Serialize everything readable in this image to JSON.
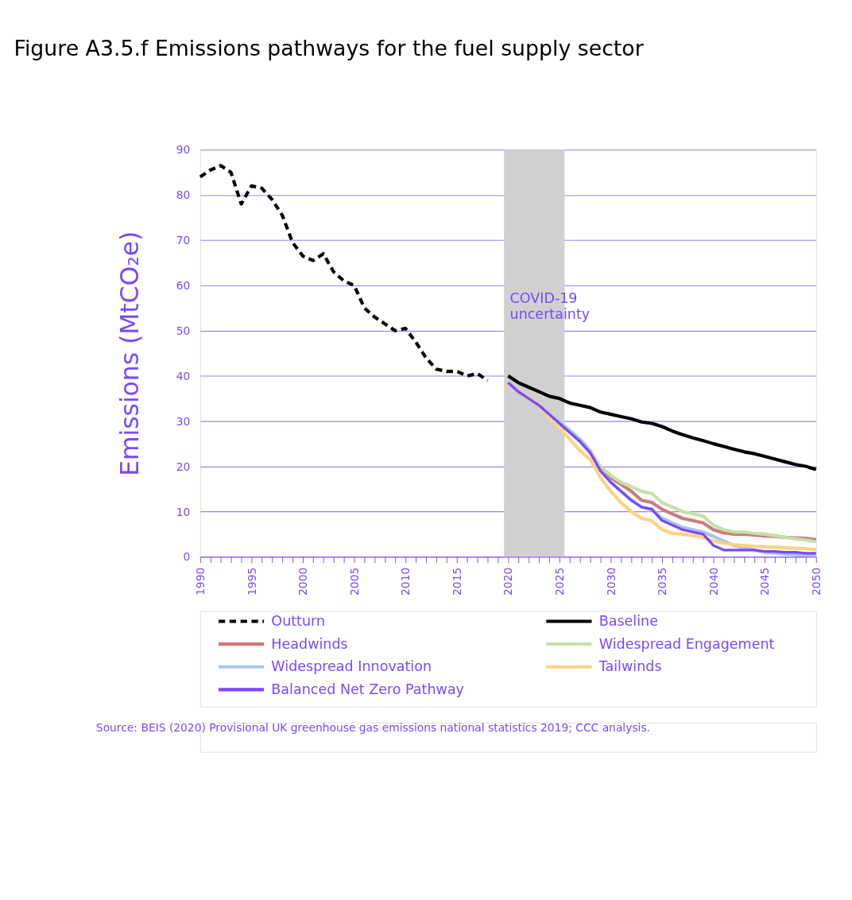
{
  "chart_data": {
    "type": "line",
    "title": "Figure A3.5.f Emissions pathways for the fuel supply sector",
    "ylabel": "Emissions (MtCO₂e)",
    "annotations": [
      "Source: BEIS (2020) Provisional UK greenhouse gas emissions national statistics 2019; CCC analysis."
    ],
    "xlim": [
      1990,
      2050
    ],
    "xticks": [
      1990,
      {
        "value": 1991,
        "label": null
      },
      {
        "value": 1992,
        "label": null
      },
      {
        "value": 1993,
        "label": null
      },
      {
        "value": 1994,
        "label": null
      },
      1995,
      {
        "value": 1996,
        "label": null
      },
      {
        "value": 1997,
        "label": null
      },
      {
        "value": 1998,
        "label": null
      },
      {
        "value": 1999,
        "label": null
      },
      2000,
      {
        "value": 2001,
        "label": null
      },
      {
        "value": 2002,
        "label": null
      },
      {
        "value": 2003,
        "label": null
      },
      {
        "value": 2004,
        "label": null
      },
      2005,
      {
        "value": 2006,
        "label": null
      },
      {
        "value": 2007,
        "label": null
      },
      {
        "value": 2008,
        "label": null
      },
      {
        "value": 2009,
        "label": null
      },
      2010,
      {
        "value": 2011,
        "label": null
      },
      {
        "value": 2012,
        "label": null
      },
      {
        "value": 2013,
        "label": null
      },
      {
        "value": 2014,
        "label": null
      },
      2015,
      {
        "value": 2016,
        "label": null
      },
      {
        "value": 2017,
        "label": null
      },
      {
        "value": 2018,
        "label": null
      },
      {
        "value": 2019,
        "label": null
      },
      2020,
      {
        "value": 2021,
        "label": null
      },
      {
        "value": 2022,
        "label": null
      },
      {
        "value": 2023,
        "label": null
      },
      {
        "value": 2024,
        "label": null
      },
      2025,
      {
        "value": 2026,
        "label": null
      },
      {
        "value": 2027,
        "label": null
      },
      {
        "value": 2028,
        "label": null
      },
      {
        "value": 2029,
        "label": null
      },
      2030,
      {
        "value": 2031,
        "label": null
      },
      {
        "value": 2032,
        "label": null
      },
      {
        "value": 2033,
        "label": null
      },
      {
        "value": 2034,
        "label": null
      },
      2035,
      {
        "value": 2036,
        "label": null
      },
      {
        "value": 2037,
        "label": null
      },
      {
        "value": 2038,
        "label": null
      },
      {
        "value": 2039,
        "label": null
      },
      2040,
      {
        "value": 2041,
        "label": null
      },
      {
        "value": 2042,
        "label": null
      },
      {
        "value": 2043,
        "label": null
      },
      {
        "value": 2044,
        "label": null
      },
      2045,
      {
        "value": 2046,
        "label": null
      },
      {
        "value": 2047,
        "label": null
      },
      {
        "value": 2048,
        "label": null
      },
      {
        "value": 2049,
        "label": null
      },
      2050
    ],
    "ylim": [
      0,
      90
    ],
    "yticks": [
      0,
      10,
      20,
      30,
      40,
      50,
      60,
      70,
      80,
      90
    ],
    "grid": "y",
    "legend": "bottom",
    "bands": [
      {
        "axis": "x",
        "from": 2019.6,
        "to": 2025.5,
        "label": "COVID-19\nuncertainty",
        "color": "#d0d0d0"
      }
    ],
    "series": [
      {
        "name": "Outturn",
        "color": "#000000",
        "line_style": "dashed",
        "x": [
          1990,
          1991,
          1992,
          1993,
          1994,
          1995,
          1996,
          1997,
          1998,
          1999,
          2000,
          2001,
          2002,
          2003,
          2004,
          2005,
          2006,
          2007,
          2008,
          2009,
          2010,
          2011,
          2012,
          2013,
          2014,
          2015,
          2016,
          2017,
          2018
        ],
        "values": [
          84,
          85.5,
          86.5,
          85,
          78,
          82,
          81.5,
          79,
          75.5,
          69.5,
          66.5,
          65.5,
          67,
          63,
          61,
          60,
          55,
          53,
          51.5,
          50,
          50.5,
          47.5,
          44,
          41.5,
          41,
          41,
          40,
          40.5,
          39
        ]
      },
      {
        "name": "Baseline",
        "color": "#000000",
        "line_style": "solid",
        "x": [
          2020,
          2021,
          2022,
          2023,
          2024,
          2025,
          2026,
          2027,
          2028,
          2029,
          2030,
          2031,
          2032,
          2033,
          2034,
          2035,
          2036,
          2037,
          2038,
          2039,
          2040,
          2041,
          2042,
          2043,
          2044,
          2045,
          2046,
          2047,
          2048,
          2049,
          2050
        ],
        "values": [
          40,
          38.5,
          37.5,
          36.5,
          35.5,
          35,
          34,
          33.5,
          33,
          32,
          31.5,
          31,
          30.5,
          29.8,
          29.5,
          28.8,
          27.8,
          27,
          26.3,
          25.7,
          25,
          24.4,
          23.8,
          23.2,
          22.8,
          22.2,
          21.6,
          21,
          20.4,
          20,
          19.3
        ]
      },
      {
        "name": "Headwinds",
        "color": "#c97b7d",
        "line_style": "solid",
        "x": [
          2020,
          2021,
          2022,
          2023,
          2024,
          2025,
          2026,
          2027,
          2028,
          2029,
          2030,
          2031,
          2032,
          2033,
          2034,
          2035,
          2036,
          2037,
          2038,
          2039,
          2040,
          2041,
          2042,
          2043,
          2044,
          2045,
          2046,
          2047,
          2048,
          2049,
          2050
        ],
        "values": [
          38.5,
          36.5,
          35,
          33.5,
          31.5,
          29.5,
          27.5,
          25.5,
          23,
          19.5,
          17.5,
          16,
          14.5,
          12.5,
          12,
          10.5,
          9.5,
          8.5,
          8,
          7.5,
          6,
          5.3,
          5,
          5,
          4.8,
          4.6,
          4.5,
          4.3,
          4.2,
          4.1,
          3.8
        ]
      },
      {
        "name": "Widespread Engagement",
        "color": "#c5e0a5",
        "line_style": "solid",
        "x": [
          2020,
          2021,
          2022,
          2023,
          2024,
          2025,
          2026,
          2027,
          2028,
          2029,
          2030,
          2031,
          2032,
          2033,
          2034,
          2035,
          2036,
          2037,
          2038,
          2039,
          2040,
          2041,
          2042,
          2043,
          2044,
          2045,
          2046,
          2047,
          2048,
          2049,
          2050
        ],
        "values": [
          38.5,
          36.5,
          35,
          33.5,
          31.5,
          29.5,
          27.5,
          25.5,
          23,
          20,
          18,
          16.5,
          15.5,
          14.5,
          14,
          12,
          11,
          10,
          9.5,
          9,
          7,
          6,
          5.5,
          5.5,
          5.2,
          5,
          4.7,
          4.3,
          4,
          3.7,
          3.3
        ]
      },
      {
        "name": "Widespread Innovation",
        "color": "#a9c4eb",
        "line_style": "solid",
        "x": [
          2020,
          2021,
          2022,
          2023,
          2024,
          2025,
          2026,
          2027,
          2028,
          2029,
          2030,
          2031,
          2032,
          2033,
          2034,
          2035,
          2036,
          2037,
          2038,
          2039,
          2040,
          2041,
          2042,
          2043,
          2044,
          2045,
          2046,
          2047,
          2048,
          2049,
          2050
        ],
        "values": [
          38.5,
          36.5,
          35,
          33.5,
          31.5,
          29.8,
          28,
          26,
          23.5,
          19,
          16.5,
          14.5,
          12.5,
          11,
          10.5,
          8.5,
          7.5,
          6.5,
          6,
          5.5,
          4.5,
          3.5,
          2.5,
          2,
          1.5,
          1,
          0.8,
          0.6,
          0.5,
          0.4,
          0.3
        ]
      },
      {
        "name": "Tailwinds",
        "color": "#ffd280",
        "line_style": "solid",
        "x": [
          2020,
          2021,
          2022,
          2023,
          2024,
          2025,
          2026,
          2027,
          2028,
          2029,
          2030,
          2031,
          2032,
          2033,
          2034,
          2035,
          2036,
          2037,
          2038,
          2039,
          2040,
          2041,
          2042,
          2043,
          2044,
          2045,
          2046,
          2047,
          2048,
          2049,
          2050
        ],
        "values": [
          38.5,
          36.5,
          35,
          33.5,
          31,
          28.5,
          26,
          23.5,
          21.5,
          17.5,
          14.5,
          12,
          10,
          8.5,
          8,
          6,
          5.2,
          5,
          4.7,
          4.3,
          3.5,
          3,
          2.7,
          2.5,
          2.3,
          2.2,
          2.1,
          2,
          1.9,
          1.8,
          1.6
        ]
      },
      {
        "name": "Balanced Net Zero Pathway",
        "color": "#7a47ff",
        "line_style": "solid",
        "x": [
          2020,
          2021,
          2022,
          2023,
          2024,
          2025,
          2026,
          2027,
          2028,
          2029,
          2030,
          2031,
          2032,
          2033,
          2034,
          2035,
          2036,
          2037,
          2038,
          2039,
          2040,
          2041,
          2042,
          2043,
          2044,
          2045,
          2046,
          2047,
          2048,
          2049,
          2050
        ],
        "values": [
          38.5,
          36.5,
          35,
          33.5,
          31.5,
          29.5,
          27.5,
          25.5,
          23,
          19,
          16.5,
          14.5,
          12.5,
          11,
          10.5,
          8,
          7,
          6,
          5.5,
          5,
          2.5,
          1.5,
          1.5,
          1.5,
          1.5,
          1.2,
          1.2,
          1,
          1,
          0.8,
          0.8
        ]
      }
    ]
  }
}
